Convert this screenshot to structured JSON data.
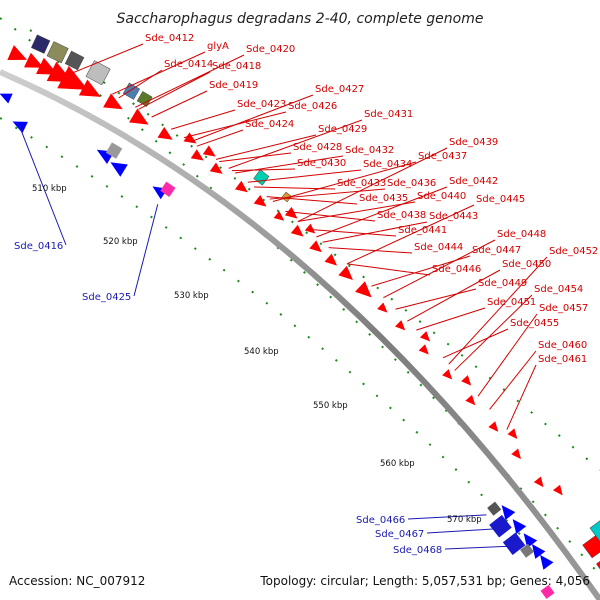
{
  "title": "Saccharophagus degradans 2-40, complete genome",
  "footer": {
    "accession": "Accession: NC_007912",
    "info": "Topology: circular; Length: 5,057,531 bp; Genes: 4,056"
  },
  "ticks": [
    "510 kbp",
    "520 kbp",
    "530 kbp",
    "540 kbp",
    "550 kbp",
    "560 kbp",
    "570 kbp"
  ],
  "forward_labels": [
    "Sde_0412",
    "glyA",
    "Sde_0420",
    "Sde_0414",
    "Sde_0418",
    "Sde_0419",
    "Sde_0427",
    "Sde_0423",
    "Sde_0426",
    "Sde_0424",
    "Sde_0431",
    "Sde_0429",
    "Sde_0428",
    "Sde_0432",
    "Sde_0439",
    "Sde_0430",
    "Sde_0434",
    "Sde_0437",
    "Sde_0433",
    "Sde_0436",
    "Sde_0442",
    "Sde_0435",
    "Sde_0440",
    "Sde_0445",
    "Sde_0438",
    "Sde_0443",
    "Sde_0441",
    "Sde_0448",
    "Sde_0444",
    "Sde_0447",
    "Sde_0452",
    "Sde_0446",
    "Sde_0450",
    "Sde_0449",
    "Sde_0454",
    "Sde_0451",
    "Sde_0457",
    "Sde_0455",
    "Sde_0460",
    "Sde_0461"
  ],
  "reverse_labels": [
    "Sde_0416",
    "Sde_0425",
    "Sde_0466",
    "Sde_0467",
    "Sde_0468"
  ],
  "colors": {
    "forward_gene": "#ff0000",
    "reverse_gene": "#0000ff",
    "forward_label": "#d40000",
    "reverse_label": "#1a1ab4",
    "backbone": "#8a8a8a",
    "tick_dots": "#1a8a1a"
  }
}
